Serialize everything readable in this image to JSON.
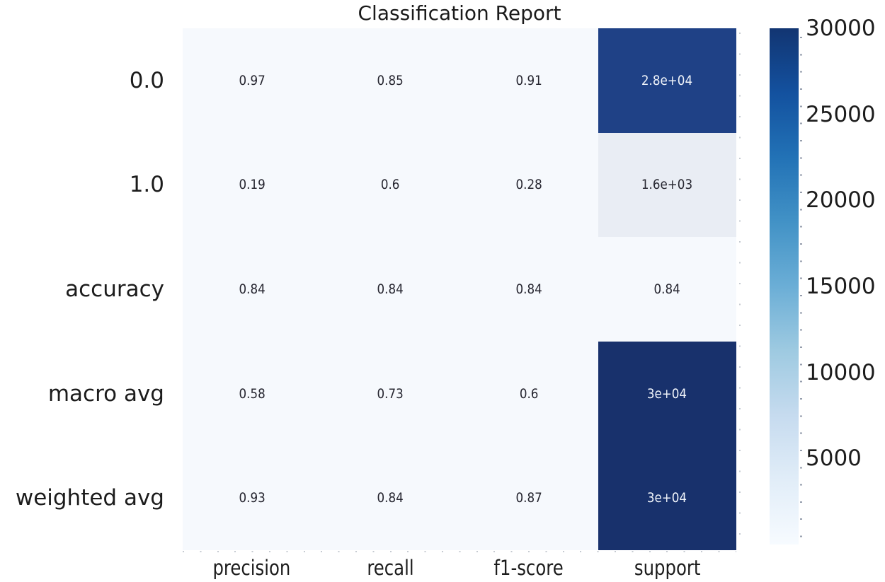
{
  "chart_data": {
    "type": "heatmap",
    "title": "Classification Report",
    "colormap": "Blues",
    "rows": [
      "0.0",
      "1.0",
      "accuracy",
      "macro avg",
      "weighted avg"
    ],
    "columns": [
      "precision",
      "recall",
      "f1-score",
      "support"
    ],
    "values": [
      [
        0.97,
        0.85,
        0.91,
        28000
      ],
      [
        0.19,
        0.6,
        0.28,
        1600
      ],
      [
        0.84,
        0.84,
        0.84,
        0.84
      ],
      [
        0.58,
        0.73,
        0.6,
        30000
      ],
      [
        0.93,
        0.84,
        0.87,
        30000
      ]
    ],
    "annotations": [
      [
        "0.97",
        "0.85",
        "0.91",
        "2.8e+04"
      ],
      [
        "0.19",
        "0.6",
        "0.28",
        "1.6e+03"
      ],
      [
        "0.84",
        "0.84",
        "0.84",
        "0.84"
      ],
      [
        "0.58",
        "0.73",
        "0.6",
        "3e+04"
      ],
      [
        "0.93",
        "0.84",
        "0.87",
        "3e+04"
      ]
    ],
    "cell_colors": [
      [
        "#f6f9fd",
        "#f6f9fd",
        "#f6f9fd",
        "#1f4186"
      ],
      [
        "#f6f9fd",
        "#f6f9fd",
        "#f6f9fd",
        "#e9edf4"
      ],
      [
        "#f6f9fd",
        "#f6f9fd",
        "#f6f9fd",
        "#f6f9fd"
      ],
      [
        "#f6f9fd",
        "#f6f9fd",
        "#f6f9fd",
        "#18316c"
      ],
      [
        "#f6f9fd",
        "#f6f9fd",
        "#f6f9fd",
        "#18316c"
      ]
    ],
    "annotation_colors": {
      "on_light": "#262630",
      "on_dark": "#f0f4fa"
    },
    "colorbar": {
      "vmin": 0,
      "vmax": 30000,
      "tick_labels": [
        "30000",
        "25000",
        "20000",
        "15000",
        "10000",
        "5000"
      ],
      "tick_values": [
        30000,
        25000,
        20000,
        15000,
        10000,
        5000
      ],
      "gradient_stops_bottom_to_top": [
        "#f7fbff",
        "#e1edf8",
        "#c6dbef",
        "#9ecae1",
        "#6baed6",
        "#4292c6",
        "#2272b6",
        "#13519f",
        "#123572"
      ]
    },
    "legend_position": "right",
    "grid": false
  }
}
